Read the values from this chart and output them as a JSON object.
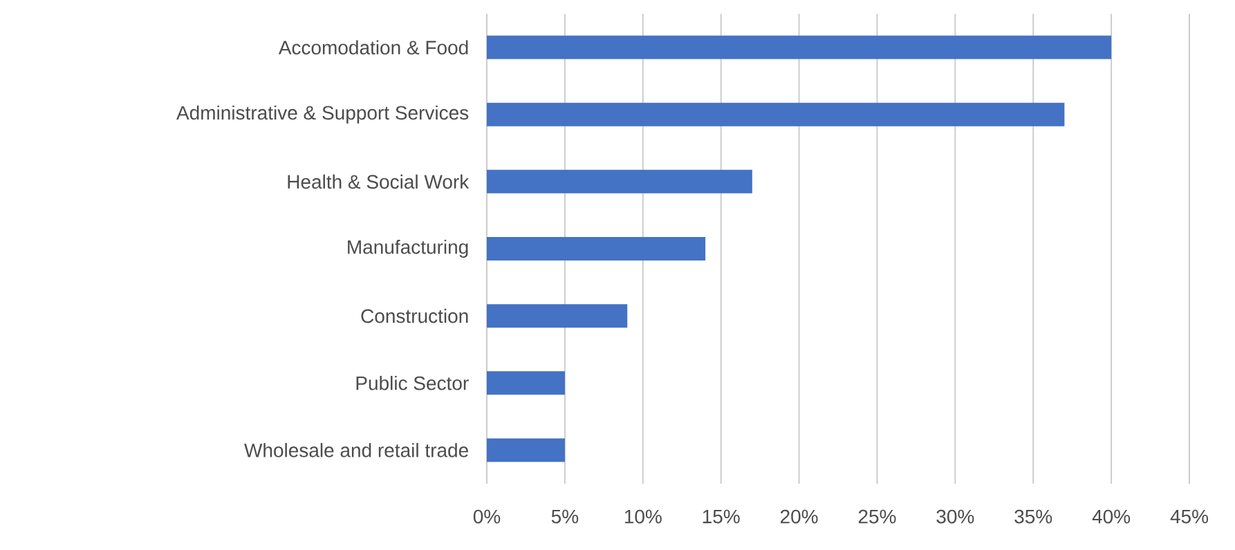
{
  "chart_data": {
    "type": "bar",
    "orientation": "horizontal",
    "categories": [
      "Accomodation & Food",
      "Administrative & Support Services",
      "Health & Social Work",
      "Manufacturing",
      "Construction",
      "Public Sector",
      "Wholesale and retail trade"
    ],
    "values": [
      40,
      37,
      17,
      14,
      9,
      5,
      5
    ],
    "color": "#4472c4",
    "xlim": [
      0,
      45
    ],
    "xticks": [
      {
        "value": 0,
        "label": "0%"
      },
      {
        "value": 5,
        "label": "5%"
      },
      {
        "value": 10,
        "label": "10%"
      },
      {
        "value": 15,
        "label": "15%"
      },
      {
        "value": 20,
        "label": "20%"
      },
      {
        "value": 25,
        "label": "25%"
      },
      {
        "value": 30,
        "label": "30%"
      },
      {
        "value": 35,
        "label": "35%"
      },
      {
        "value": 40,
        "label": "40%"
      },
      {
        "value": 45,
        "label": "45%"
      }
    ],
    "grid": "x"
  }
}
